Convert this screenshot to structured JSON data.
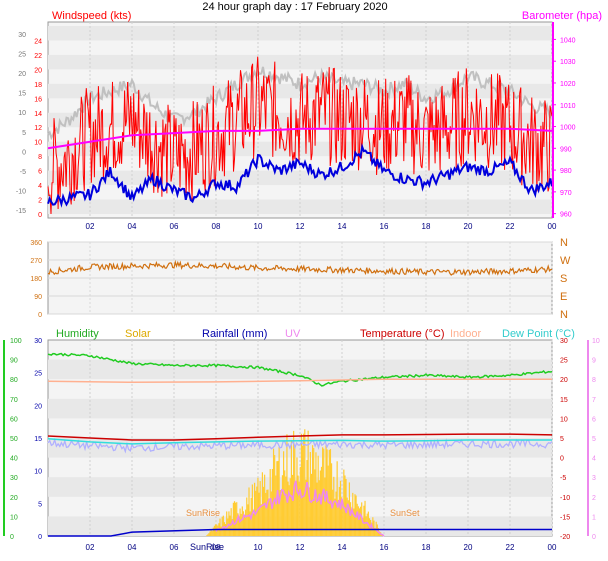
{
  "title": "24 hour graph day : 17 February 2020",
  "colors": {
    "wind": "#ff0000",
    "gust": "#c0c0c0",
    "baro": "#ff00ff",
    "temp_blue": "#0000dd",
    "dir": "#d07010",
    "humidity": "#22cc22",
    "solar": "#ffcc33",
    "rain": "#0000cc",
    "uv": "#ee88ee",
    "temperature": "#cc0000",
    "indoor": "#ffb090",
    "dewpoint": "#33dddd",
    "lavender": "#b0b0ff"
  },
  "labels": {
    "windspeed": "Windspeed (kts)",
    "barometer": "Barometer (hpa)",
    "humidity": "Humidity",
    "solar": "Solar",
    "rainfall": "Rainfall (mm)",
    "uv": "UV",
    "temperature": "Temperature (°C)",
    "indoor": "Indoor",
    "dewpoint": "Dew Point (°C)",
    "sunrise": "SunRise",
    "sunset": "SunSet"
  },
  "chart_data": [
    {
      "type": "line",
      "x_ticks": [
        "02",
        "04",
        "06",
        "08",
        "10",
        "12",
        "14",
        "16",
        "18",
        "20",
        "22",
        "00"
      ],
      "left_ticks_wind": [
        "0",
        "2",
        "4",
        "6",
        "8",
        "10",
        "12",
        "14",
        "16",
        "18",
        "20",
        "22",
        "24"
      ],
      "left_ticks_temp": [
        "-15",
        "-10",
        "-5",
        "0",
        "5",
        "10",
        "15",
        "20",
        "25",
        "30"
      ],
      "right_ticks_baro": [
        "960",
        "970",
        "980",
        "990",
        "1000",
        "1010",
        "1020",
        "1030",
        "1040"
      ],
      "series": [
        {
          "name": "Windspeed (kts)",
          "hours": [
            0,
            1,
            2,
            3,
            4,
            5,
            6,
            7,
            8,
            9,
            10,
            11,
            12,
            13,
            14,
            15,
            16,
            17,
            18,
            19,
            20,
            21,
            22,
            23,
            24
          ],
          "values": [
            6,
            8,
            11,
            12,
            13,
            10,
            8,
            9,
            11,
            13,
            15,
            14,
            13,
            14,
            13,
            13,
            12,
            13,
            11,
            12,
            14,
            13,
            12,
            10,
            9
          ]
        },
        {
          "name": "Barometer (hpa)",
          "hours": [
            0,
            2,
            4,
            6,
            8,
            10,
            12,
            14,
            16,
            18,
            20,
            22,
            24
          ],
          "values": [
            990,
            993,
            996,
            997,
            998,
            998,
            999,
            999,
            999,
            999,
            999,
            999,
            998
          ]
        }
      ]
    },
    {
      "type": "line",
      "y_ticks": [
        "360",
        "270",
        "180",
        "90",
        "0"
      ],
      "compass": [
        "N",
        "W",
        "S",
        "E",
        "N"
      ],
      "series": [
        {
          "name": "Wind direction",
          "hours": [
            0,
            2,
            4,
            6,
            8,
            10,
            12,
            14,
            16,
            18,
            20,
            22,
            24
          ],
          "values": [
            210,
            235,
            240,
            245,
            240,
            230,
            225,
            220,
            215,
            210,
            210,
            215,
            225
          ]
        }
      ]
    },
    {
      "type": "line",
      "left_ticks_humidity": [
        "0",
        "10",
        "20",
        "30",
        "40",
        "50",
        "60",
        "70",
        "80",
        "90",
        "100"
      ],
      "left_ticks_rain": [
        "0",
        "5",
        "10",
        "15",
        "20",
        "25",
        "30"
      ],
      "right_ticks_temp": [
        "-20",
        "-15",
        "-10",
        "-5",
        "0",
        "5",
        "10",
        "15",
        "20",
        "25",
        "30"
      ],
      "right_ticks_uv": [
        "0",
        "1",
        "2",
        "3",
        "4",
        "5",
        "6",
        "7",
        "8",
        "9",
        "10"
      ],
      "series": [
        {
          "name": "Humidity",
          "hours": [
            0,
            2,
            4,
            6,
            8,
            10,
            12,
            13,
            14,
            16,
            18,
            20,
            22,
            24
          ],
          "values": [
            93,
            92,
            88,
            87,
            87,
            86,
            82,
            77,
            79,
            81,
            82,
            81,
            82,
            84
          ]
        },
        {
          "name": "Indoor",
          "hours": [
            0,
            4,
            8,
            12,
            16,
            20,
            24
          ],
          "values": [
            19.5,
            19.2,
            19.3,
            19.6,
            20,
            20,
            20
          ]
        },
        {
          "name": "Temperature (°C)",
          "hours": [
            0,
            2,
            4,
            6,
            8,
            10,
            12,
            14,
            16,
            18,
            20,
            22,
            24
          ],
          "values": [
            5.5,
            5,
            4.5,
            4.5,
            4.8,
            5.2,
            5.5,
            5.8,
            5.8,
            5.9,
            6,
            6,
            5.8
          ]
        },
        {
          "name": "Dew Point (°C)",
          "hours": [
            0,
            2,
            4,
            6,
            8,
            10,
            12,
            14,
            16,
            18,
            20,
            22,
            24
          ],
          "values": [
            4.8,
            4,
            3.5,
            3.8,
            4,
            4.2,
            4.3,
            4.4,
            4.2,
            4.3,
            4.5,
            4.5,
            4.5
          ]
        },
        {
          "name": "Solar",
          "hours": [
            7.5,
            9,
            10,
            11,
            12,
            13,
            14,
            15,
            16
          ],
          "values": [
            0,
            2,
            3,
            5,
            6,
            5,
            4,
            2,
            0
          ]
        },
        {
          "name": "Rainfall (mm)",
          "hours": [
            0,
            3,
            4,
            8,
            24
          ],
          "values": [
            0,
            0,
            0.6,
            1,
            1
          ]
        }
      ]
    }
  ]
}
